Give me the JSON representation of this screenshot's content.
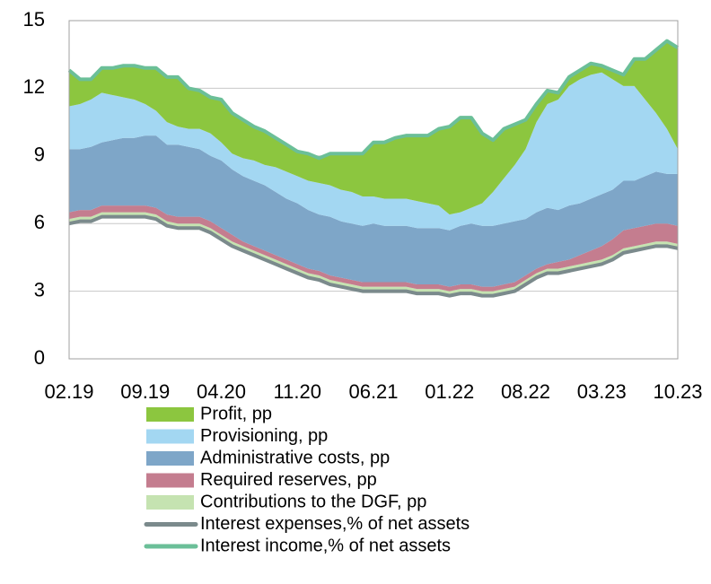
{
  "chart_data": {
    "type": "stacked_area",
    "categories": [
      "02.19",
      null,
      null,
      null,
      null,
      null,
      null,
      "09.19",
      null,
      null,
      null,
      null,
      null,
      null,
      "04.20",
      null,
      null,
      null,
      null,
      null,
      null,
      "11.20",
      null,
      null,
      null,
      null,
      null,
      null,
      "06.21",
      null,
      null,
      null,
      null,
      null,
      null,
      "01.22",
      null,
      null,
      null,
      null,
      null,
      null,
      "08.22",
      null,
      null,
      null,
      null,
      null,
      null,
      "03.23",
      null,
      null,
      null,
      null,
      null,
      null,
      "10.23"
    ],
    "ylim": [
      0,
      15
    ],
    "yticks": [
      0,
      3,
      6,
      9,
      12,
      15
    ],
    "grid": true,
    "series": [
      {
        "name": "Profit, pp",
        "kind": "area",
        "color": "#8cc63f",
        "values": [
          1.6,
          1.1,
          0.9,
          1.1,
          1.2,
          1.4,
          1.5,
          1.6,
          1.9,
          2.0,
          2.2,
          1.8,
          1.7,
          1.6,
          1.9,
          1.8,
          1.7,
          1.5,
          1.5,
          1.3,
          1.2,
          1.1,
          1.2,
          1.1,
          1.4,
          1.6,
          1.7,
          1.9,
          2.4,
          2.5,
          2.7,
          2.8,
          2.9,
          3.0,
          3.4,
          3.9,
          4.2,
          4.0,
          3.1,
          2.3,
          2.2,
          1.8,
          1.3,
          0.8,
          0.6,
          0.3,
          0.4,
          0.4,
          0.5,
          0.3,
          0.4,
          0.5,
          1.2,
          1.8,
          2.8,
          3.9,
          4.5
        ]
      },
      {
        "name": "Provisioning, pp",
        "kind": "area",
        "color": "#a3d7f2",
        "values": [
          1.9,
          2.0,
          2.1,
          2.2,
          2.0,
          1.8,
          1.7,
          1.4,
          1.1,
          1.0,
          0.8,
          0.8,
          0.9,
          1.0,
          0.8,
          0.7,
          0.8,
          0.9,
          0.9,
          1.1,
          1.2,
          1.2,
          1.3,
          1.4,
          1.4,
          1.4,
          1.4,
          1.3,
          1.2,
          1.2,
          1.2,
          1.2,
          1.2,
          1.1,
          1.0,
          0.7,
          0.6,
          0.7,
          1.0,
          1.5,
          2.0,
          2.5,
          3.1,
          4.0,
          4.6,
          4.9,
          5.3,
          5.5,
          5.5,
          5.4,
          4.9,
          4.2,
          4.2,
          3.4,
          2.6,
          2.0,
          1.1
        ]
      },
      {
        "name": "Administrative costs, pp",
        "kind": "area",
        "color": "#7ea6c8",
        "values": [
          2.8,
          2.7,
          2.8,
          2.8,
          2.9,
          3.0,
          3.0,
          3.1,
          3.2,
          3.1,
          3.2,
          3.1,
          3.0,
          2.9,
          3.0,
          2.9,
          2.9,
          2.9,
          2.9,
          2.8,
          2.7,
          2.7,
          2.6,
          2.5,
          2.6,
          2.5,
          2.5,
          2.5,
          2.6,
          2.5,
          2.5,
          2.5,
          2.5,
          2.5,
          2.5,
          2.5,
          2.6,
          2.7,
          2.7,
          2.7,
          2.7,
          2.7,
          2.5,
          2.5,
          2.5,
          2.3,
          2.4,
          2.3,
          2.3,
          2.3,
          2.2,
          2.2,
          2.1,
          2.2,
          2.3,
          2.2,
          2.3
        ]
      },
      {
        "name": "Required reserves, pp",
        "kind": "area",
        "color": "#c47d8f",
        "values": [
          0.3,
          0.3,
          0.3,
          0.3,
          0.3,
          0.3,
          0.3,
          0.3,
          0.3,
          0.3,
          0.3,
          0.3,
          0.3,
          0.3,
          0.3,
          0.3,
          0.2,
          0.2,
          0.2,
          0.2,
          0.2,
          0.2,
          0.2,
          0.2,
          0.2,
          0.2,
          0.2,
          0.2,
          0.2,
          0.2,
          0.2,
          0.2,
          0.2,
          0.2,
          0.2,
          0.2,
          0.2,
          0.2,
          0.2,
          0.2,
          0.2,
          0.2,
          0.2,
          0.2,
          0.2,
          0.3,
          0.3,
          0.4,
          0.5,
          0.6,
          0.7,
          0.8,
          0.8,
          0.8,
          0.8,
          0.8,
          0.8
        ]
      },
      {
        "name": "Contributions to the DGF, pp",
        "kind": "area",
        "color": "#c5e3b1",
        "values": [
          0.2,
          0.2,
          0.2,
          0.2,
          0.2,
          0.2,
          0.2,
          0.2,
          0.2,
          0.2,
          0.2,
          0.2,
          0.2,
          0.2,
          0.2,
          0.2,
          0.2,
          0.2,
          0.2,
          0.2,
          0.2,
          0.2,
          0.2,
          0.2,
          0.2,
          0.2,
          0.2,
          0.2,
          0.2,
          0.2,
          0.2,
          0.2,
          0.2,
          0.2,
          0.2,
          0.2,
          0.2,
          0.2,
          0.2,
          0.2,
          0.2,
          0.2,
          0.2,
          0.2,
          0.2,
          0.2,
          0.2,
          0.2,
          0.2,
          0.2,
          0.2,
          0.2,
          0.2,
          0.2,
          0.2,
          0.2,
          0.2
        ]
      },
      {
        "name": "Interest expenses,% of net assets",
        "kind": "line",
        "color": "#7b8a8c",
        "values": [
          6.0,
          6.1,
          6.1,
          6.3,
          6.3,
          6.3,
          6.3,
          6.3,
          6.2,
          5.9,
          5.8,
          5.8,
          5.8,
          5.6,
          5.3,
          5.0,
          4.8,
          4.6,
          4.4,
          4.2,
          4.0,
          3.8,
          3.6,
          3.5,
          3.3,
          3.2,
          3.1,
          3.0,
          3.0,
          3.0,
          3.0,
          3.0,
          2.9,
          2.9,
          2.9,
          2.8,
          2.9,
          2.9,
          2.8,
          2.8,
          2.9,
          3.0,
          3.3,
          3.6,
          3.8,
          3.8,
          3.9,
          4.0,
          4.1,
          4.2,
          4.4,
          4.7,
          4.8,
          4.9,
          5.0,
          5.0,
          4.9
        ]
      },
      {
        "name": "Interest income,% of net assets",
        "kind": "line",
        "color": "#6bbf98",
        "values": [
          12.8,
          12.4,
          12.4,
          12.9,
          12.9,
          13.0,
          13.0,
          12.9,
          12.9,
          12.5,
          12.5,
          12.0,
          11.9,
          11.6,
          11.5,
          10.9,
          10.6,
          10.3,
          10.1,
          9.8,
          9.5,
          9.2,
          9.1,
          8.9,
          9.1,
          9.1,
          9.1,
          9.1,
          9.6,
          9.6,
          9.8,
          9.9,
          9.9,
          9.9,
          10.2,
          10.3,
          10.7,
          10.7,
          10.0,
          9.7,
          10.2,
          10.4,
          10.6,
          11.3,
          11.9,
          11.8,
          12.5,
          12.8,
          13.1,
          13.0,
          12.8,
          12.6,
          13.3,
          13.3,
          13.7,
          14.1,
          13.8
        ]
      }
    ]
  }
}
